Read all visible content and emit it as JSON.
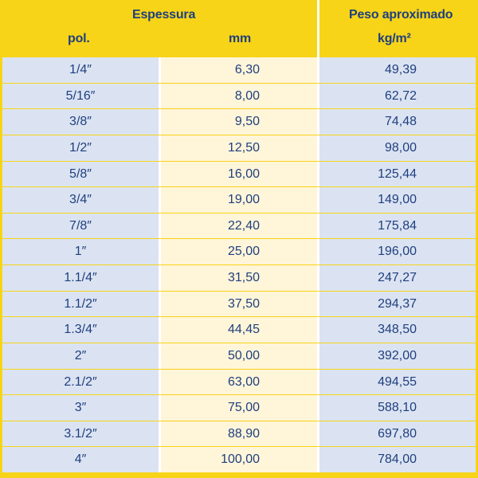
{
  "header": {
    "espessura": "Espessura",
    "pol": "pol.",
    "mm": "mm",
    "peso_title": "Peso aproximado",
    "peso_unit": "kg/m²"
  },
  "rows": [
    {
      "pol": "1/4″",
      "mm": "6,30",
      "peso": "49,39"
    },
    {
      "pol": "5/16″",
      "mm": "8,00",
      "peso": "62,72"
    },
    {
      "pol": "3/8″",
      "mm": "9,50",
      "peso": "74,48"
    },
    {
      "pol": "1/2″",
      "mm": "12,50",
      "peso": "98,00"
    },
    {
      "pol": "5/8″",
      "mm": "16,00",
      "peso": "125,44"
    },
    {
      "pol": "3/4″",
      "mm": "19,00",
      "peso": "149,00"
    },
    {
      "pol": "7/8″",
      "mm": "22,40",
      "peso": "175,84"
    },
    {
      "pol": "1″",
      "mm": "25,00",
      "peso": "196,00"
    },
    {
      "pol": "1.1/4″",
      "mm": "31,50",
      "peso": "247,27"
    },
    {
      "pol": "1.1/2″",
      "mm": "37,50",
      "peso": "294,37"
    },
    {
      "pol": "1.3/4″",
      "mm": "44,45",
      "peso": "348,50"
    },
    {
      "pol": "2″",
      "mm": "50,00",
      "peso": "392,00"
    },
    {
      "pol": "2.1/2″",
      "mm": "63,00",
      "peso": "494,55"
    },
    {
      "pol": "3″",
      "mm": "75,00",
      "peso": "588,10"
    },
    {
      "pol": "3.1/2″",
      "mm": "88,90",
      "peso": "697,80"
    },
    {
      "pol": "4″",
      "mm": "100,00",
      "peso": "784,00"
    }
  ],
  "colors": {
    "header_bg": "#f7d417",
    "text": "#1f3f7f",
    "col_blue": "#dbe3f2",
    "col_cream": "#fff5d9"
  }
}
